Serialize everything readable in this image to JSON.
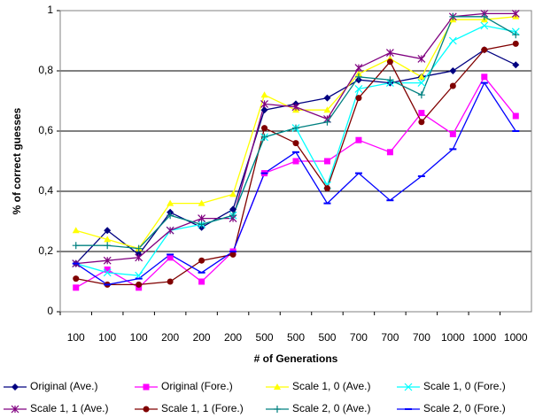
{
  "chart_data": {
    "type": "line",
    "ylabel": "% of correct guesses",
    "xlabel": "# of Generations",
    "categories": [
      "100",
      "100",
      "100",
      "200",
      "200",
      "200",
      "500",
      "500",
      "500",
      "700",
      "700",
      "700",
      "1000",
      "1000",
      "1000"
    ],
    "ylim": [
      0,
      1
    ],
    "yticks": [
      0,
      {
        "value": 0.2,
        "label": "0,2"
      },
      {
        "value": 0.4,
        "label": "0,4"
      },
      {
        "value": 0.6,
        "label": "0,6"
      },
      {
        "value": 0.8,
        "label": "0,8"
      },
      1
    ],
    "grid": true,
    "legend": "bottom",
    "series": [
      {
        "name": "Original (Ave.)",
        "color": "#000080",
        "marker": "diamond",
        "values": [
          0.16,
          0.27,
          0.19,
          0.33,
          0.28,
          0.34,
          0.67,
          0.69,
          0.71,
          0.77,
          0.76,
          0.78,
          0.8,
          0.87,
          0.82
        ]
      },
      {
        "name": "Original (Fore.)",
        "color": "#ff00ff",
        "marker": "square",
        "values": [
          0.08,
          0.14,
          0.08,
          0.18,
          0.1,
          0.2,
          0.46,
          0.5,
          0.5,
          0.57,
          0.53,
          0.66,
          0.59,
          0.78,
          0.65
        ]
      },
      {
        "name": "Scale 1, 0 (Ave.)",
        "color": "#ffff00",
        "marker": "triangle",
        "values": [
          0.27,
          0.24,
          0.21,
          0.36,
          0.36,
          0.39,
          0.72,
          0.67,
          0.67,
          0.79,
          0.84,
          0.78,
          0.97,
          0.97,
          0.98
        ]
      },
      {
        "name": "Scale 1, 0 (Fore.)",
        "color": "#00ffff",
        "marker": "x",
        "values": [
          0.16,
          0.13,
          0.12,
          0.27,
          0.29,
          0.32,
          0.58,
          0.61,
          0.42,
          0.74,
          0.76,
          0.76,
          0.9,
          0.95,
          0.93
        ]
      },
      {
        "name": "Scale 1, 1 (Ave.)",
        "color": "#800080",
        "marker": "asterisk",
        "values": [
          0.16,
          0.17,
          0.18,
          0.27,
          0.31,
          0.31,
          0.69,
          0.68,
          0.64,
          0.81,
          0.86,
          0.84,
          0.98,
          0.99,
          0.99
        ]
      },
      {
        "name": "Scale 1, 1 (Fore.)",
        "color": "#800000",
        "marker": "circle",
        "values": [
          0.11,
          0.09,
          0.09,
          0.1,
          0.17,
          0.19,
          0.61,
          0.56,
          0.41,
          0.71,
          0.83,
          0.63,
          0.75,
          0.87,
          0.89
        ]
      },
      {
        "name": "Scale 2, 0 (Ave.)",
        "color": "#008080",
        "marker": "plus",
        "values": [
          0.22,
          0.22,
          0.21,
          0.32,
          0.29,
          0.32,
          0.58,
          0.61,
          0.63,
          0.78,
          0.77,
          0.72,
          0.98,
          0.98,
          0.92
        ]
      },
      {
        "name": "Scale 2, 0 (Fore.)",
        "color": "#0000ff",
        "marker": "dash",
        "values": [
          0.16,
          0.09,
          0.11,
          0.19,
          0.13,
          0.2,
          0.46,
          0.53,
          0.36,
          0.46,
          0.37,
          0.45,
          0.54,
          0.76,
          0.6
        ]
      }
    ]
  }
}
